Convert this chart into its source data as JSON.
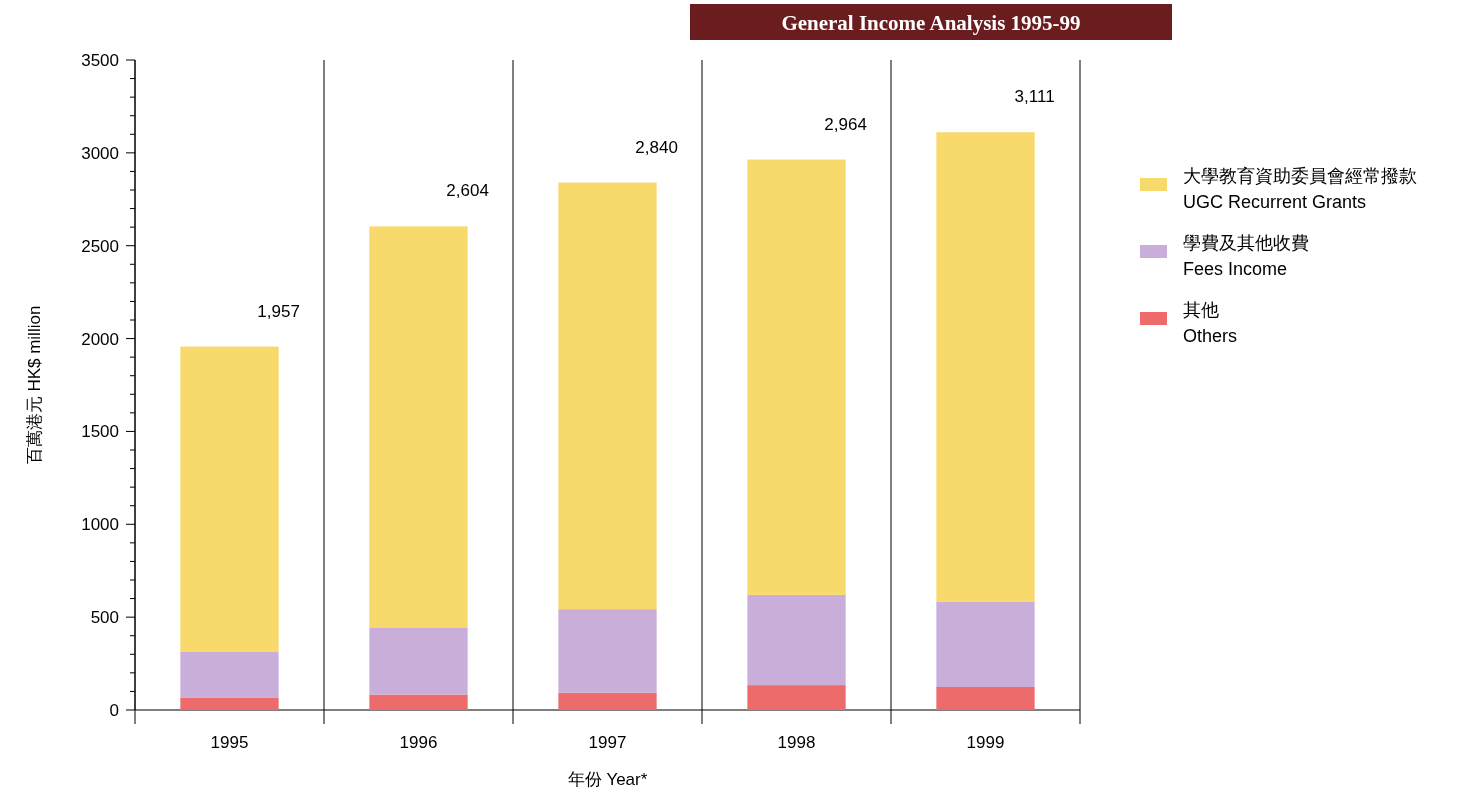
{
  "chart_data": {
    "type": "bar",
    "title": "General Income Analysis 1995-99",
    "xlabel": "年份 Year*",
    "ylabel": "百萬港元 HK$ million",
    "categories": [
      "1995",
      "1996",
      "1997",
      "1998",
      "1999"
    ],
    "stacked": true,
    "series": [
      {
        "name": "其他\nOthers",
        "color": "#ee6b6b",
        "values": [
          65,
          83,
          93,
          134,
          124
        ]
      },
      {
        "name": "學費及其他收費\nFees Income",
        "color": "#c8aed8",
        "values": [
          250,
          362,
          450,
          486,
          460
        ]
      },
      {
        "name": "大學教育資助委員會經常撥款\nUGC Recurrent Grants",
        "color": "#f8d96c",
        "values": [
          1642,
          2159,
          2297,
          2344,
          2527
        ]
      }
    ],
    "totals": [
      "1,957",
      "2,604",
      "2,840",
      "2,964",
      "3,111"
    ],
    "ylim": [
      0,
      3500
    ],
    "yticks": [
      0,
      {
        "value": 100,
        "label": null
      },
      {
        "value": 200,
        "label": null
      },
      {
        "value": 300,
        "label": null
      },
      {
        "value": 400,
        "label": null
      },
      500,
      {
        "value": 600,
        "label": null
      },
      {
        "value": 700,
        "label": null
      },
      {
        "value": 800,
        "label": null
      },
      {
        "value": 900,
        "label": null
      },
      1000,
      {
        "value": 1100,
        "label": null
      },
      {
        "value": 1200,
        "label": null
      },
      {
        "value": 1300,
        "label": null
      },
      {
        "value": 1400,
        "label": null
      },
      1500,
      {
        "value": 1600,
        "label": null
      },
      {
        "value": 1700,
        "label": null
      },
      {
        "value": 1800,
        "label": null
      },
      {
        "value": 1900,
        "label": null
      },
      2000,
      {
        "value": 2100,
        "label": null
      },
      {
        "value": 2200,
        "label": null
      },
      {
        "value": 2300,
        "label": null
      },
      {
        "value": 2400,
        "label": null
      },
      2500,
      {
        "value": 2600,
        "label": null
      },
      {
        "value": 2700,
        "label": null
      },
      {
        "value": 2800,
        "label": null
      },
      {
        "value": 2900,
        "label": null
      },
      3000,
      {
        "value": 3100,
        "label": null
      },
      {
        "value": 3200,
        "label": null
      },
      {
        "value": 3300,
        "label": null
      },
      {
        "value": 3400,
        "label": null
      },
      3500
    ],
    "grid": "x",
    "legend": "right"
  }
}
